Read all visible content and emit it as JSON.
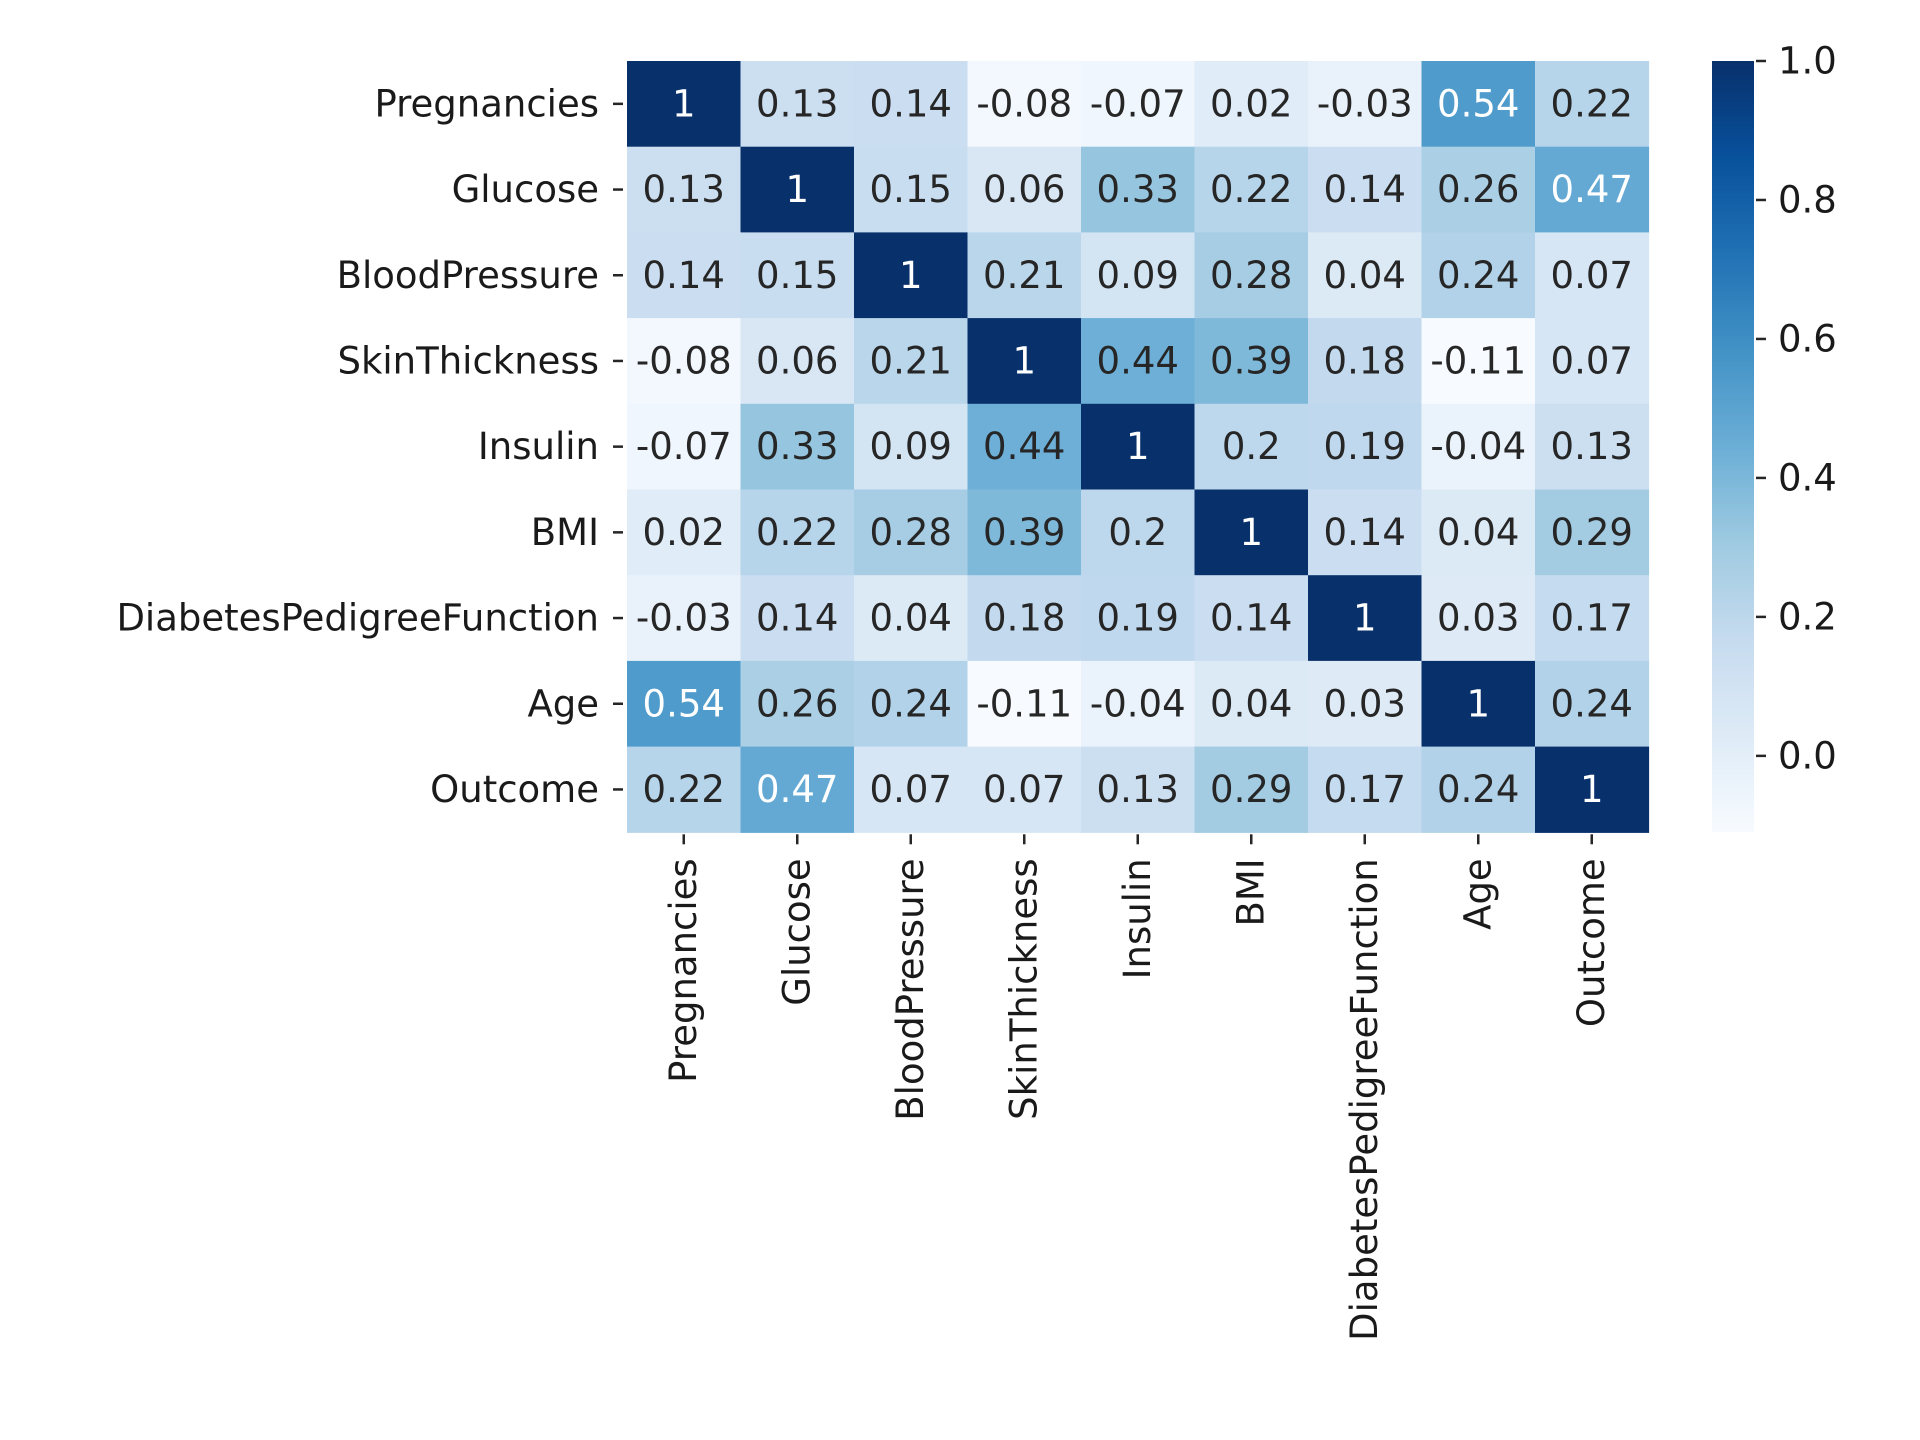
{
  "chart_data": {
    "type": "heatmap",
    "variables": [
      "Pregnancies",
      "Glucose",
      "BloodPressure",
      "SkinThickness",
      "Insulin",
      "BMI",
      "DiabetesPedigreeFunction",
      "Age",
      "Outcome"
    ],
    "matrix": [
      [
        1,
        0.13,
        0.14,
        -0.08,
        -0.07,
        0.02,
        -0.03,
        0.54,
        0.22
      ],
      [
        0.13,
        1,
        0.15,
        0.06,
        0.33,
        0.22,
        0.14,
        0.26,
        0.47
      ],
      [
        0.14,
        0.15,
        1,
        0.21,
        0.09,
        0.28,
        0.04,
        0.24,
        0.07
      ],
      [
        -0.08,
        0.06,
        0.21,
        1,
        0.44,
        0.39,
        0.18,
        -0.11,
        0.07
      ],
      [
        -0.07,
        0.33,
        0.09,
        0.44,
        1,
        0.2,
        0.19,
        -0.04,
        0.13
      ],
      [
        0.02,
        0.22,
        0.28,
        0.39,
        0.2,
        1,
        0.14,
        0.04,
        0.29
      ],
      [
        -0.03,
        0.14,
        0.04,
        0.18,
        0.19,
        0.14,
        1,
        0.03,
        0.17
      ],
      [
        0.54,
        0.26,
        0.24,
        -0.11,
        -0.04,
        0.04,
        0.03,
        1,
        0.24
      ],
      [
        0.22,
        0.47,
        0.07,
        0.07,
        0.13,
        0.29,
        0.17,
        0.24,
        1
      ]
    ],
    "cell_labels": [
      [
        "1",
        "0.13",
        "0.14",
        "-0.08",
        "-0.07",
        "0.02",
        "-0.03",
        "0.54",
        "0.22"
      ],
      [
        "0.13",
        "1",
        "0.15",
        "0.06",
        "0.33",
        "0.22",
        "0.14",
        "0.26",
        "0.47"
      ],
      [
        "0.14",
        "0.15",
        "1",
        "0.21",
        "0.09",
        "0.28",
        "0.04",
        "0.24",
        "0.07"
      ],
      [
        "-0.08",
        "0.06",
        "0.21",
        "1",
        "0.44",
        "0.39",
        "0.18",
        "-0.11",
        "0.07"
      ],
      [
        "-0.07",
        "0.33",
        "0.09",
        "0.44",
        "1",
        "0.2",
        "0.19",
        "-0.04",
        "0.13"
      ],
      [
        "0.02",
        "0.22",
        "0.28",
        "0.39",
        "0.2",
        "1",
        "0.14",
        "0.04",
        "0.29"
      ],
      [
        "-0.03",
        "0.14",
        "0.04",
        "0.18",
        "0.19",
        "0.14",
        "1",
        "0.03",
        "0.17"
      ],
      [
        "0.54",
        "0.26",
        "0.24",
        "-0.11",
        "-0.04",
        "0.04",
        "0.03",
        "1",
        "0.24"
      ],
      [
        "0.22",
        "0.47",
        "0.07",
        "0.07",
        "0.13",
        "0.29",
        "0.17",
        "0.24",
        "1"
      ]
    ],
    "colormap": "Blues",
    "colormap_stops": [
      "#f7fbff",
      "#deebf7",
      "#c6dbef",
      "#9ecae1",
      "#6baed6",
      "#4292c6",
      "#2171b5",
      "#08519c",
      "#08306b"
    ],
    "vmin": -0.11,
    "vmax": 1.0,
    "colorbar_ticks": [
      "0.0",
      "0.2",
      "0.4",
      "0.6",
      "0.8",
      "1.0"
    ],
    "title": "",
    "xlabel": "",
    "ylabel": ""
  }
}
